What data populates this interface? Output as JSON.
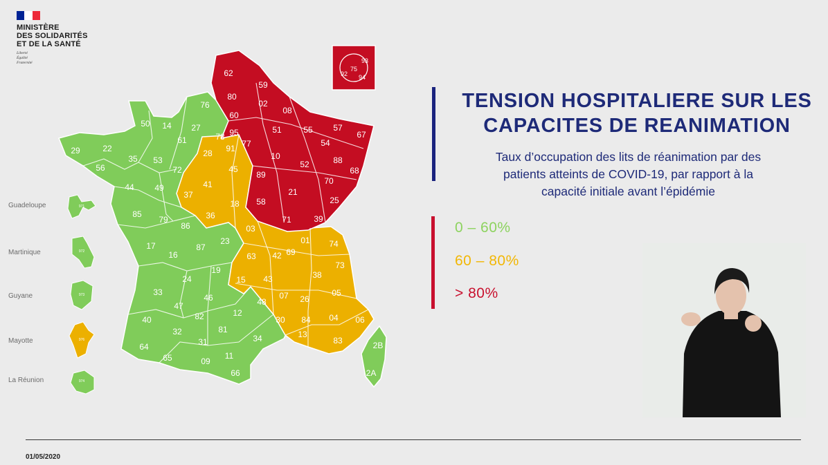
{
  "header": {
    "logo_lines": [
      "MINISTÈRE",
      "DES SOLIDARITÉS",
      "ET DE LA SANTÉ"
    ],
    "motto_lines": [
      "Liberté",
      "Égalité",
      "Fraternité"
    ]
  },
  "title_lines": [
    "TENSION HOSPITALIERE SUR LES",
    "CAPACITES DE REANIMATION"
  ],
  "subtitle_lines": [
    "Taux d’occupation des lits de réanimation par des",
    "patients atteints de COVID-19, par rapport à la",
    "capacité initiale avant l’épidémie"
  ],
  "legend": [
    {
      "label": "0 – 60%",
      "color": "#8dd35f"
    },
    {
      "label": "60 – 80%",
      "color": "#f2b705"
    },
    {
      "label": "> 80%",
      "color": "#c8102e"
    }
  ],
  "colors": {
    "green": "#80cc5a",
    "orange": "#ecb000",
    "red": "#c40d22",
    "title": "#1e2a78"
  },
  "overseas": [
    {
      "label": "Guadeloupe",
      "color": "green",
      "code": "971"
    },
    {
      "label": "Martinique",
      "color": "green",
      "code": "972"
    },
    {
      "label": "Guyane",
      "color": "green",
      "code": "973"
    },
    {
      "label": "Mayotte",
      "color": "orange",
      "code": "976"
    },
    {
      "label": "La Réunion",
      "color": "green",
      "code": "974"
    }
  ],
  "inset_paris": {
    "color": "red",
    "codes": [
      "93",
      "75",
      "92",
      "94"
    ]
  },
  "departments": {
    "red": [
      "62",
      "59",
      "80",
      "02",
      "08",
      "60",
      "51",
      "55",
      "57",
      "67",
      "54",
      "78",
      "95",
      "91",
      "77",
      "10",
      "52",
      "88",
      "68",
      "89",
      "21",
      "70",
      "25",
      "58",
      "71",
      "39"
    ],
    "orange": [
      "28",
      "45",
      "37",
      "41",
      "18",
      "36",
      "03",
      "01",
      "74",
      "63",
      "42",
      "69",
      "73",
      "15",
      "43",
      "38",
      "07",
      "26",
      "05",
      "84",
      "04",
      "06",
      "13",
      "83"
    ],
    "green": [
      "76",
      "50",
      "14",
      "27",
      "61",
      "29",
      "22",
      "35",
      "53",
      "72",
      "56",
      "44",
      "49",
      "85",
      "79",
      "86",
      "17",
      "16",
      "87",
      "23",
      "19",
      "24",
      "33",
      "47",
      "46",
      "40",
      "32",
      "82",
      "12",
      "48",
      "81",
      "30",
      "64",
      "65",
      "31",
      "09",
      "11",
      "34",
      "66",
      "2B",
      "2A"
    ]
  },
  "footer": {
    "date": "01/05/2020"
  }
}
